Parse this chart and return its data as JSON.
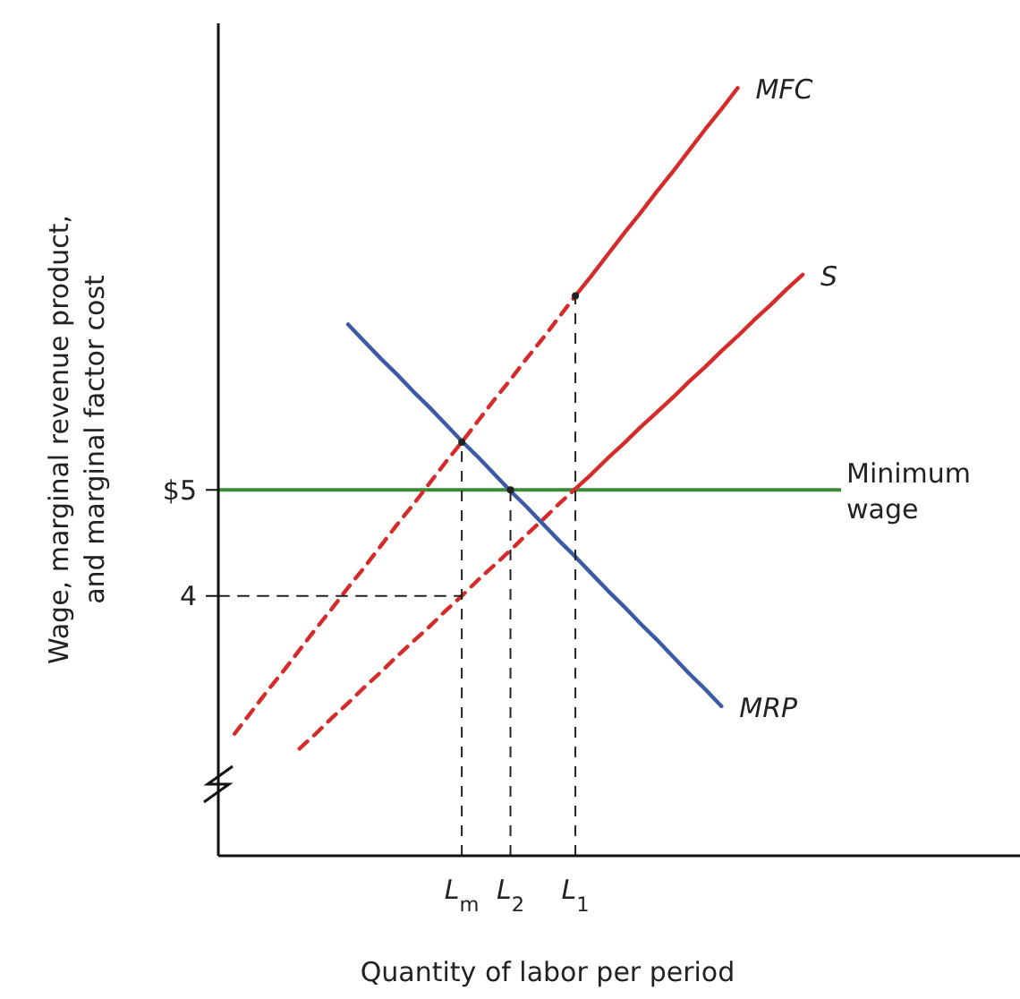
{
  "chart_data": {
    "type": "line",
    "xlabel": "Quantity of labor per period",
    "ylabel": "Wage, marginal revenue product, and marginal factor cost",
    "categories": [
      null,
      null,
      null,
      null,
      null,
      null,
      null,
      null,
      null,
      null,
      null,
      null,
      null,
      null,
      null,
      "L$_{m}$",
      null,
      null,
      "L$_{2}$",
      null,
      null,
      null,
      "L$_{1}$",
      null,
      null,
      null,
      null,
      null,
      null,
      null,
      null,
      null,
      null,
      null,
      null,
      null,
      null,
      null,
      null
    ],
    "ylim": [
      1.55,
      9.4
    ],
    "yticks": [
      {
        "value": 4,
        "label": "4"
      },
      {
        "value": 5,
        "label": "$5"
      }
    ],
    "ref_lines": [
      {
        "axis": "y",
        "value": 5,
        "label": "Minimum wage",
        "color": "#3a8a3a"
      }
    ],
    "series": [
      {
        "color": "#d62b2b",
        "line_style": "dashed",
        "values": [
          null,
          2.7,
          2.9,
          3.1,
          3.29,
          3.49,
          3.69,
          3.88,
          4.08,
          4.27,
          4.47,
          4.67,
          4.86,
          5.06,
          5.26,
          5.45,
          5.65,
          5.85,
          6.04,
          6.24,
          6.43,
          6.63,
          6.83,
          null,
          null,
          null,
          null,
          null,
          null,
          null,
          null,
          null,
          null,
          null,
          null,
          null,
          null,
          null,
          null
        ]
      },
      {
        "name": "MFC",
        "color": "#d62b2b",
        "line_style": "solid",
        "values": [
          null,
          null,
          null,
          null,
          null,
          null,
          null,
          null,
          null,
          null,
          null,
          null,
          null,
          null,
          null,
          null,
          null,
          null,
          null,
          null,
          null,
          null,
          6.83,
          7.02,
          7.22,
          7.42,
          7.61,
          7.81,
          8.0,
          8.2,
          8.4,
          8.59,
          8.79,
          null,
          null,
          null,
          null,
          null,
          null
        ]
      },
      {
        "color": "#d62b2b",
        "line_style": "dashed",
        "values": [
          null,
          null,
          null,
          null,
          null,
          2.56,
          2.7,
          2.85,
          2.99,
          3.14,
          3.28,
          3.43,
          3.57,
          3.71,
          3.86,
          4.0,
          4.15,
          4.29,
          4.43,
          4.58,
          4.72,
          4.87,
          5.01,
          null,
          null,
          null,
          null,
          null,
          null,
          null,
          null,
          null,
          null,
          null,
          null,
          null,
          null,
          null,
          null
        ]
      },
      {
        "name": "S",
        "color": "#d62b2b",
        "line_style": "solid",
        "values": [
          null,
          null,
          null,
          null,
          null,
          null,
          null,
          null,
          null,
          null,
          null,
          null,
          null,
          null,
          null,
          null,
          null,
          null,
          null,
          null,
          null,
          null,
          5.01,
          5.15,
          5.3,
          5.44,
          5.59,
          5.73,
          5.87,
          6.02,
          6.16,
          6.31,
          6.45,
          6.6,
          6.74,
          6.89,
          7.03,
          null,
          null
        ]
      },
      {
        "name": "MRP",
        "color": "#3b5ba5",
        "line_style": "solid",
        "values": [
          null,
          null,
          null,
          null,
          null,
          null,
          null,
          null,
          6.56,
          6.4,
          6.24,
          6.09,
          5.93,
          5.78,
          5.62,
          5.46,
          5.31,
          5.15,
          4.99,
          4.84,
          4.68,
          4.52,
          4.37,
          4.21,
          4.05,
          3.9,
          3.74,
          3.59,
          3.43,
          3.27,
          3.12,
          2.96,
          null,
          null,
          null,
          null,
          null,
          null,
          null
        ]
      },
      {
        "color": "#222222",
        "line_style": "dashed",
        "values": [
          4,
          4,
          4,
          4,
          4,
          4,
          4,
          4,
          4,
          4,
          4,
          4,
          4,
          4,
          4,
          4,
          null,
          null,
          null,
          null,
          null,
          null,
          null,
          null,
          null,
          null,
          null,
          null,
          null,
          null,
          null,
          null,
          null,
          null,
          null,
          null,
          null,
          null,
          null
        ]
      },
      {
        "type": "scatter",
        "marker": "circle",
        "color": "#222222",
        "line_style": "dashed",
        "values": [
          null,
          null,
          null,
          null,
          null,
          null,
          null,
          null,
          null,
          null,
          null,
          null,
          null,
          null,
          null,
          5.45,
          null,
          null,
          5,
          null,
          null,
          null,
          6.83,
          null,
          null,
          null,
          null,
          null,
          null,
          null,
          null,
          null,
          null,
          null,
          null,
          null,
          null,
          null,
          null
        ],
        "errors": [
          null,
          null,
          null,
          null,
          null,
          null,
          null,
          null,
          null,
          null,
          null,
          null,
          null,
          null,
          null,
          [
            1.55,
            5.45
          ],
          null,
          null,
          [
            1.55,
            5
          ],
          null,
          null,
          null,
          [
            1.55,
            6.83
          ],
          null,
          null,
          null,
          null,
          null,
          null,
          null,
          null,
          null,
          null,
          null,
          null,
          null,
          null,
          null,
          null
        ]
      }
    ]
  }
}
